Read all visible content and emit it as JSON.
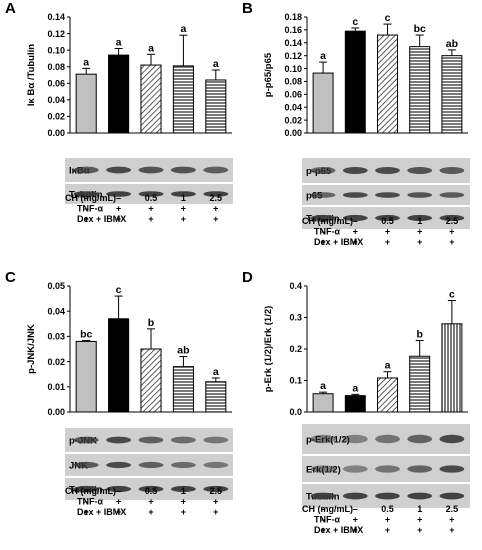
{
  "conditions": {
    "labels": [
      "CH (mg/mL)",
      "TNF-α",
      "Dex + IBMX"
    ],
    "rows": [
      [
        "–",
        "–",
        "0.5",
        "1",
        "2.5"
      ],
      [
        "–",
        "+",
        "+",
        "+",
        "+"
      ],
      [
        "+",
        "+",
        "+",
        "+",
        "+"
      ]
    ]
  },
  "colors": {
    "bar1": "#c0c0c0",
    "bar2": "#000000",
    "pattern": "#333333",
    "blot_bg": "#cfcfcf",
    "band": "#3a3a3a"
  },
  "chart_data": [
    {
      "panel": "A",
      "type": "bar",
      "ylabel": "Iκ Bα /Tubulin",
      "ylim": [
        0,
        0.14
      ],
      "yticks": [
        "0.00",
        "0.02",
        "0.04",
        "0.06",
        "0.08",
        "0.10",
        "0.12",
        "0.14"
      ],
      "patterns": [
        "solid-gray",
        "solid-black",
        "diagonal",
        "horizontal",
        "horizontal"
      ],
      "values": [
        0.071,
        0.094,
        0.082,
        0.081,
        0.064
      ],
      "errors": [
        0.007,
        0.008,
        0.013,
        0.037,
        0.012
      ],
      "letters": [
        "a",
        "a",
        "a",
        "a",
        "a"
      ],
      "blots": [
        "IκBα",
        "Tubulin"
      ]
    },
    {
      "panel": "B",
      "type": "bar",
      "ylabel": "p-p65/p65",
      "ylim": [
        0,
        0.18
      ],
      "yticks": [
        "0.00",
        "0.02",
        "0.04",
        "0.06",
        "0.08",
        "0.10",
        "0.12",
        "0.14",
        "0.16",
        "0.18"
      ],
      "patterns": [
        "solid-gray",
        "solid-black",
        "diagonal",
        "horizontal",
        "horizontal"
      ],
      "values": [
        0.093,
        0.158,
        0.152,
        0.134,
        0.12
      ],
      "errors": [
        0.017,
        0.005,
        0.017,
        0.018,
        0.009
      ],
      "letters": [
        "a",
        "c",
        "c",
        "bc",
        "ab"
      ],
      "blots": [
        "p-p65",
        "p65",
        "Tubulin"
      ]
    },
    {
      "panel": "C",
      "type": "bar",
      "ylabel": "p-JNK/JNK",
      "ylim": [
        0,
        0.05
      ],
      "yticks": [
        "0.00",
        "0.01",
        "0.02",
        "0.03",
        "0.04",
        "0.05"
      ],
      "patterns": [
        "solid-gray",
        "solid-black",
        "diagonal",
        "horizontal",
        "horizontal"
      ],
      "values": [
        0.028,
        0.037,
        0.025,
        0.018,
        0.012
      ],
      "errors": [
        0.0004,
        0.009,
        0.008,
        0.004,
        0.0015
      ],
      "letters": [
        "bc",
        "c",
        "b",
        "ab",
        "a"
      ],
      "blots": [
        "p-JNK",
        "JNK",
        "Tubulin"
      ]
    },
    {
      "panel": "D",
      "type": "bar",
      "ylabel": "p-Erk (1/2)/Erk (1/2)",
      "ylim": [
        0,
        0.4
      ],
      "yticks": [
        "0.0",
        "0.1",
        "0.2",
        "0.3",
        "0.4"
      ],
      "patterns": [
        "solid-gray",
        "solid-black",
        "diagonal",
        "horizontal",
        "vertical"
      ],
      "values": [
        0.058,
        0.052,
        0.108,
        0.177,
        0.28
      ],
      "errors": [
        0.005,
        0.004,
        0.02,
        0.05,
        0.074
      ],
      "letters": [
        "a",
        "a",
        "a",
        "b",
        "c"
      ],
      "blots": [
        "p-Erk(1/2)",
        "Erk(1/2)",
        "Tubulin"
      ]
    }
  ]
}
